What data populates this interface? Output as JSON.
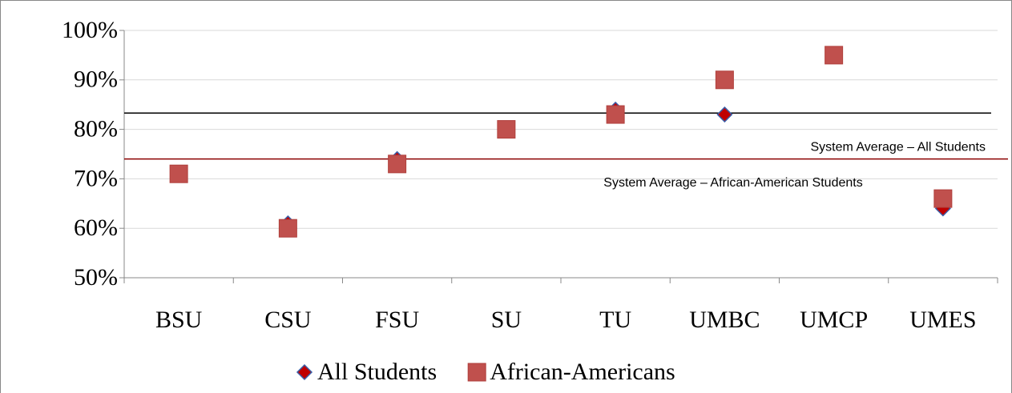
{
  "chart_data": {
    "type": "scatter",
    "categories": [
      "BSU",
      "CSU",
      "FSU",
      "SU",
      "TU",
      "UMBC",
      "UMCP",
      "UMES"
    ],
    "series": [
      {
        "name": "All Students",
        "color": "#c00000",
        "marker": "diamond",
        "values": [
          71,
          61,
          74,
          80,
          84,
          83,
          95,
          64
        ]
      },
      {
        "name": "African-Americans",
        "color": "#c0504d",
        "marker": "square",
        "values": [
          71,
          60,
          73,
          80,
          83,
          90,
          95,
          66
        ]
      }
    ],
    "reference_lines": [
      {
        "value": 83.3,
        "label": "System Average – All Students",
        "color": "#000000"
      },
      {
        "value": 74,
        "label": "System Average – African-American Students",
        "color": "#8b0000"
      }
    ],
    "ylim": [
      50,
      100
    ],
    "yticks": [
      {
        "value": 50,
        "label": "50%"
      },
      {
        "value": 60,
        "label": "60%"
      },
      {
        "value": 70,
        "label": "70%"
      },
      {
        "value": 80,
        "label": "80%"
      },
      {
        "value": 90,
        "label": "90%"
      },
      {
        "value": 100,
        "label": "100%"
      }
    ],
    "grid": true,
    "legend": "bottom"
  }
}
